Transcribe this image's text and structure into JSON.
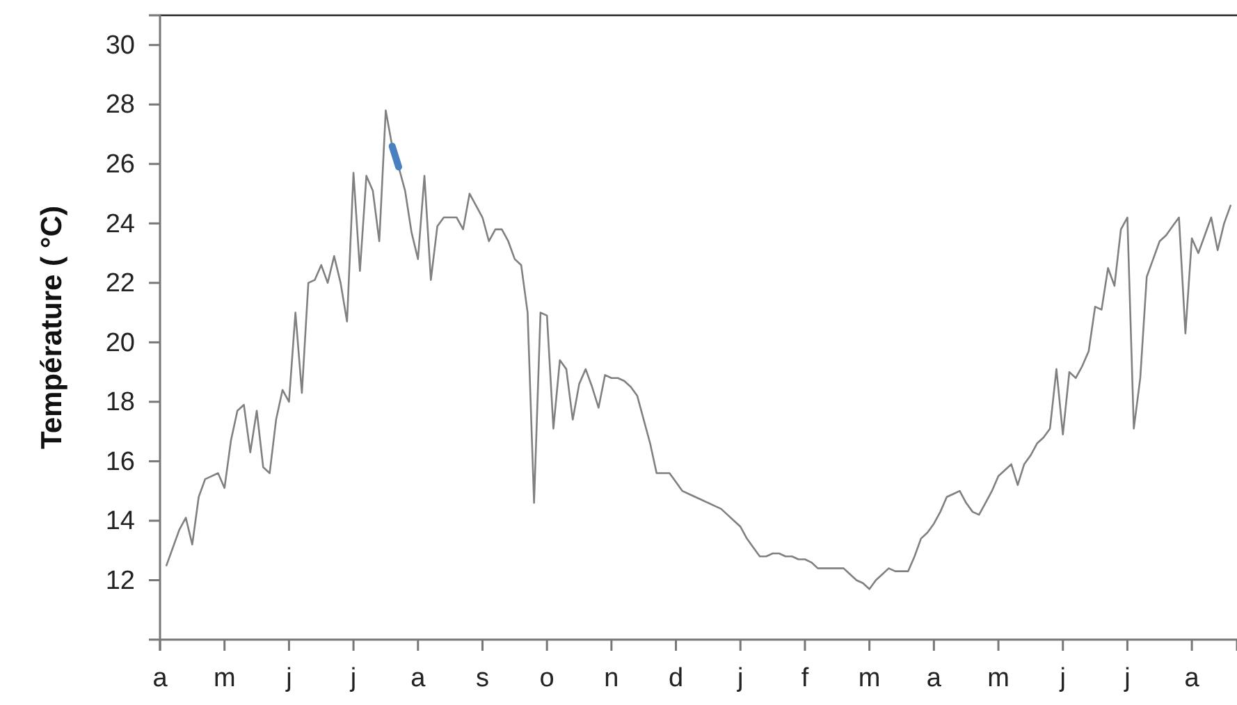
{
  "chart_data": {
    "type": "line",
    "ylabel": "Température ( °C)",
    "ylim": [
      10,
      31
    ],
    "categories": [
      "a",
      null,
      null,
      null,
      null,
      null,
      null,
      null,
      null,
      null,
      "m",
      null,
      null,
      null,
      null,
      null,
      null,
      null,
      null,
      null,
      "j",
      null,
      null,
      null,
      null,
      null,
      null,
      null,
      null,
      null,
      "j",
      null,
      null,
      null,
      null,
      null,
      null,
      null,
      null,
      null,
      "a",
      null,
      null,
      null,
      null,
      null,
      null,
      null,
      null,
      null,
      "s",
      null,
      null,
      null,
      null,
      null,
      null,
      null,
      null,
      null,
      "o",
      null,
      null,
      null,
      null,
      null,
      null,
      null,
      null,
      null,
      "n",
      null,
      null,
      null,
      null,
      null,
      null,
      null,
      null,
      null,
      "d",
      null,
      null,
      null,
      null,
      null,
      null,
      null,
      null,
      null,
      "j",
      null,
      null,
      null,
      null,
      null,
      null,
      null,
      null,
      null,
      "f",
      null,
      null,
      null,
      null,
      null,
      null,
      null,
      null,
      null,
      "m",
      null,
      null,
      null,
      null,
      null,
      null,
      null,
      null,
      null,
      "a",
      null,
      null,
      null,
      null,
      null,
      null,
      null,
      null,
      null,
      "m",
      null,
      null,
      null,
      null,
      null,
      null,
      null,
      null,
      null,
      "j",
      null,
      null,
      null,
      null,
      null,
      null,
      null,
      null,
      null,
      "j",
      null,
      null,
      null,
      null,
      null,
      null,
      null,
      null,
      null,
      "a",
      null,
      null,
      null,
      null,
      null,
      null
    ],
    "yticks": [
      12,
      14,
      16,
      18,
      20,
      22,
      24,
      26,
      28,
      30
    ],
    "grid": false,
    "marker": "none",
    "line_style": "solid",
    "series": [
      {
        "color": "#808080",
        "values": [
          null,
          12.5,
          13.1,
          13.7,
          14.1,
          13.2,
          14.8,
          15.4,
          15.5,
          15.6,
          15.1,
          16.7,
          17.7,
          17.9,
          16.3,
          17.7,
          15.8,
          15.6,
          17.4,
          18.4,
          18.0,
          21.0,
          18.3,
          22.0,
          22.1,
          22.6,
          22.0,
          22.9,
          22.0,
          20.7,
          25.7,
          22.4,
          25.6,
          25.1,
          23.4,
          27.8,
          26.6,
          25.9,
          25.1,
          23.7,
          22.8,
          25.6,
          22.1,
          23.9,
          24.2,
          24.2,
          24.2,
          23.8,
          25.0,
          24.6,
          24.2,
          23.4,
          23.8,
          23.8,
          23.4,
          22.8,
          22.6,
          21.0,
          14.6,
          21.0,
          20.9,
          17.1,
          19.4,
          19.1,
          17.4,
          18.6,
          19.1,
          18.5,
          17.8,
          18.9,
          18.8,
          18.8,
          18.7,
          18.5,
          18.2,
          17.4,
          16.6,
          15.6,
          15.6,
          15.6,
          15.3,
          15.0,
          14.9,
          14.8,
          14.7,
          14.6,
          14.5,
          14.4,
          14.2,
          14.0,
          13.8,
          13.4,
          13.1,
          12.8,
          12.8,
          12.9,
          12.9,
          12.8,
          12.8,
          12.7,
          12.7,
          12.6,
          12.4,
          12.4,
          12.4,
          12.4,
          12.4,
          12.2,
          12.0,
          11.9,
          11.7,
          12.0,
          12.2,
          12.4,
          12.3,
          12.3,
          12.3,
          12.8,
          13.4,
          13.6,
          13.9,
          14.3,
          14.8,
          14.9,
          15.0,
          14.6,
          14.3,
          14.2,
          14.6,
          15.0,
          15.5,
          15.7,
          15.9,
          15.2,
          15.9,
          16.2,
          16.6,
          16.8,
          17.1,
          19.1,
          16.9,
          19.0,
          18.8,
          19.2,
          19.7,
          21.2,
          21.1,
          22.5,
          21.9,
          23.8,
          24.2,
          17.1,
          18.8,
          22.2,
          22.8,
          23.4,
          23.6,
          23.9,
          24.2,
          20.3,
          23.5,
          23.0,
          23.6,
          24.2,
          23.1,
          24.0,
          24.6
        ]
      },
      {
        "color": "#4a7fc0",
        "values": [
          null,
          null,
          null,
          null,
          null,
          null,
          null,
          null,
          null,
          null,
          null,
          null,
          null,
          null,
          null,
          null,
          null,
          null,
          null,
          null,
          null,
          null,
          null,
          null,
          null,
          null,
          null,
          null,
          null,
          null,
          null,
          null,
          null,
          null,
          null,
          null,
          26.6,
          25.9,
          null,
          null,
          null,
          null,
          null,
          null,
          null,
          null,
          null,
          null,
          null,
          null,
          null,
          null,
          null,
          null,
          null,
          null,
          null,
          null,
          null,
          null,
          null,
          null,
          null,
          null,
          null,
          null,
          null,
          null,
          null,
          null,
          null,
          null,
          null,
          null,
          null,
          null,
          null,
          null,
          null,
          null,
          null,
          null,
          null,
          null,
          null,
          null,
          null,
          null,
          null,
          null,
          null,
          null,
          null,
          null,
          null,
          null,
          null,
          null,
          null,
          null,
          null,
          null,
          null,
          null,
          null,
          null,
          null,
          null,
          null,
          null,
          null,
          null,
          null,
          null,
          null,
          null,
          null,
          null,
          null,
          null,
          null,
          null,
          null,
          null,
          null,
          null,
          null,
          null,
          null,
          null,
          null,
          null,
          null,
          null,
          null,
          null,
          null,
          null,
          null,
          null,
          null,
          null,
          null,
          null,
          null,
          null,
          null,
          null,
          null,
          null,
          null,
          null,
          null,
          null,
          null,
          null,
          null,
          null,
          null,
          null,
          null,
          null,
          null,
          null,
          null,
          null,
          null
        ]
      }
    ]
  }
}
